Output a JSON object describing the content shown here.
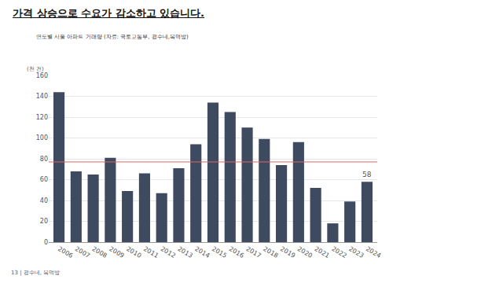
{
  "slide": {
    "heading": "가격 상승으로 수요가 감소하고 있습니다.",
    "footer": "13 | 광수네, 복덕방"
  },
  "chart_data": {
    "type": "bar",
    "subtitle": "연도별 서울 아파트 거래량 (자료: 국토교통부, 광수네,복덕방)",
    "ylabel": "(천 건)",
    "categories": [
      "2006",
      "2007",
      "2008",
      "2009",
      "2010",
      "2011",
      "2012",
      "2013",
      "2014",
      "2015",
      "2016",
      "2017",
      "2018",
      "2019",
      "2020",
      "2021",
      "2022",
      "2023",
      "2024"
    ],
    "values": [
      144,
      68,
      65,
      81,
      49,
      66,
      47,
      71,
      94,
      134,
      125,
      110,
      99,
      74,
      96,
      52,
      18,
      39,
      58
    ],
    "color": "#3d4a5f",
    "ylim": [
      0,
      160
    ],
    "yticks": [
      0,
      20,
      40,
      60,
      80,
      100,
      120,
      140,
      160
    ],
    "grid": true,
    "reference_line": {
      "value": 77,
      "color": "#e06666"
    },
    "annotations": [
      {
        "x": "2024",
        "y": 58,
        "text": "58"
      }
    ]
  }
}
